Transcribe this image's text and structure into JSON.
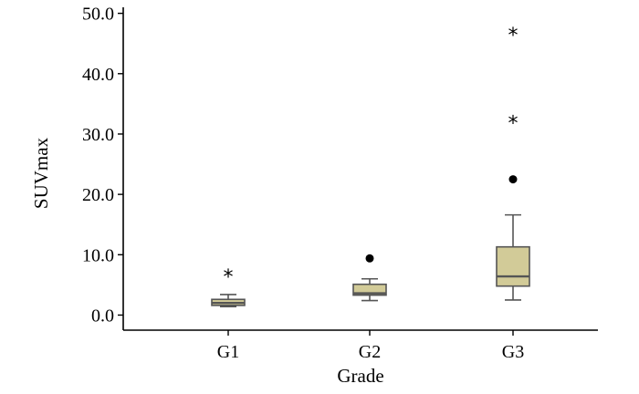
{
  "chart_data": {
    "type": "boxplot",
    "title": "",
    "xlabel": "Grade",
    "ylabel": "SUVmax",
    "ylim": [
      -2.5,
      51
    ],
    "yticks": [
      0,
      10,
      20,
      30,
      40,
      50
    ],
    "ytick_labels": [
      "0.0",
      "10.0",
      "20.0",
      "30.0",
      "40.0",
      "50.0"
    ],
    "categories": [
      "G1",
      "G2",
      "G3"
    ],
    "box_color": "#d2cb98",
    "outline_color": "#555555",
    "grid": false,
    "legend": "none",
    "boxes": [
      {
        "category": "G1",
        "whisker_low": 1.4,
        "q1": 1.6,
        "median": 2.0,
        "q3": 2.6,
        "whisker_high": 3.4,
        "outliers": [
          {
            "value": 6.6,
            "marker": "star"
          }
        ]
      },
      {
        "category": "G2",
        "whisker_low": 2.4,
        "q1": 3.3,
        "median": 3.6,
        "q3": 5.1,
        "whisker_high": 6.0,
        "outliers": [
          {
            "value": 9.4,
            "marker": "circle"
          }
        ]
      },
      {
        "category": "G3",
        "whisker_low": 2.5,
        "q1": 4.8,
        "median": 6.4,
        "q3": 11.3,
        "whisker_high": 16.6,
        "outliers": [
          {
            "value": 22.5,
            "marker": "circle"
          },
          {
            "value": 32.0,
            "marker": "star"
          },
          {
            "value": 46.6,
            "marker": "star"
          }
        ]
      }
    ]
  }
}
